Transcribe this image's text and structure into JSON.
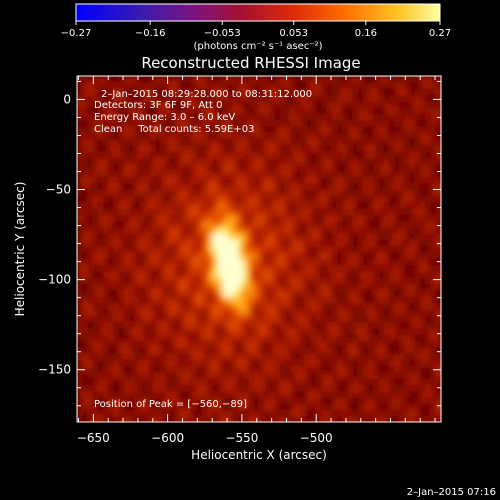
{
  "chart_data": {
    "type": "heatmap",
    "title": "Reconstructed RHESSI Image",
    "xlabel": "Heliocentric X (arcsec)",
    "ylabel": "Heliocentric Y (arcsec)",
    "xlim": [
      -661,
      -416
    ],
    "ylim": [
      -179,
      13
    ],
    "x_ticks": [
      -650,
      -600,
      -550,
      -500
    ],
    "x_tick_labels": [
      "−650",
      "−600",
      "−550",
      "−500"
    ],
    "y_ticks": [
      0,
      -50,
      -100,
      -150
    ],
    "y_tick_labels": [
      "0",
      "−50",
      "−100",
      "−150"
    ],
    "colorbar": {
      "min": -0.27,
      "max": 0.27,
      "ticks": [
        -0.27,
        -0.16,
        -0.053,
        0.053,
        0.16,
        0.27
      ],
      "tick_labels": [
        "−0.27",
        "−0.16",
        "−0.053",
        "0.053",
        "0.16",
        "0.27"
      ],
      "units": "(photons cm⁻² s⁻¹ asec⁻²)"
    },
    "annotations": {
      "time_range": "2–Jan–2015 08:29:28.000 to 08:31:12.000",
      "detectors": "Detectors: 3F 6F 9F, Att 0",
      "energy": "Energy Range: 3.0 – 6.0 keV",
      "clean": "Clean     Total counts: 5.59E+03",
      "peak": "Position of Peak = [−560,−89]"
    },
    "peak": {
      "x": -560,
      "y": -89
    },
    "timestamp": "2–Jan–2015 07:16"
  },
  "colors": {
    "colormap": [
      "#0000ff",
      "#5a1f8c",
      "#8c0f6e",
      "#c0161c",
      "#ff5000",
      "#ffa200",
      "#ffff60",
      "#ffffff"
    ],
    "background": "#000000",
    "foreground": "#ffffff"
  }
}
